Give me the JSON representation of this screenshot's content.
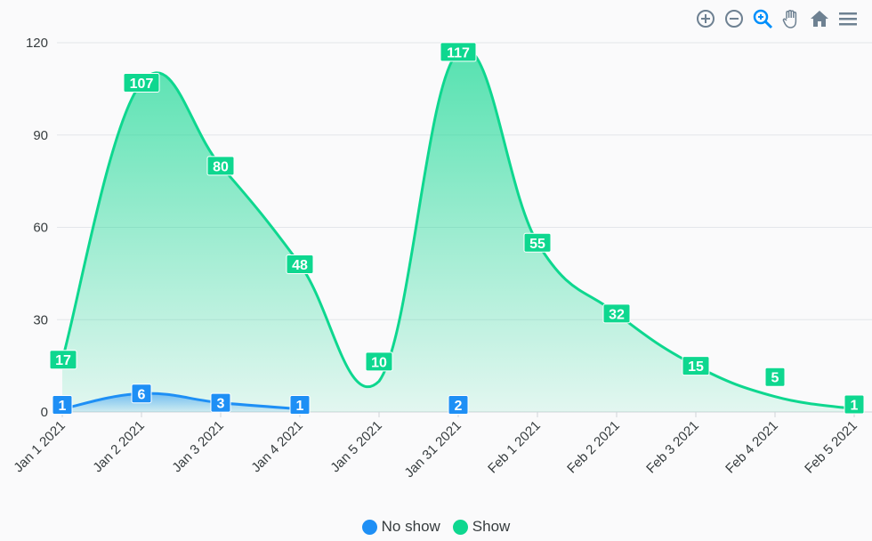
{
  "toolbar": {
    "icons": [
      "zoom-in-icon",
      "zoom-out-icon",
      "selection-zoom-icon",
      "pan-icon",
      "home-icon",
      "menu-icon"
    ]
  },
  "chart_data": {
    "type": "area",
    "categories": [
      "Jan 1 2021",
      "Jan 2 2021",
      "Jan 3 2021",
      "Jan 4 2021",
      "Jan 5 2021",
      "Jan 31 2021",
      "Feb 1 2021",
      "Feb 2 2021",
      "Feb 3 2021",
      "Feb 4 2021",
      "Feb 5 2021"
    ],
    "series": [
      {
        "name": "No show",
        "color": "#1e8ff5",
        "values": [
          1,
          6,
          3,
          1,
          null,
          2,
          null,
          null,
          null,
          null,
          null
        ]
      },
      {
        "name": "Show",
        "color": "#0ed78f",
        "values": [
          17,
          107,
          80,
          48,
          10,
          117,
          55,
          32,
          15,
          5,
          1
        ]
      }
    ],
    "y_ticks": [
      0,
      30,
      60,
      90,
      120
    ],
    "ylim": [
      0,
      120
    ],
    "grid": true,
    "legend_position": "bottom-center",
    "data_labels": true
  }
}
